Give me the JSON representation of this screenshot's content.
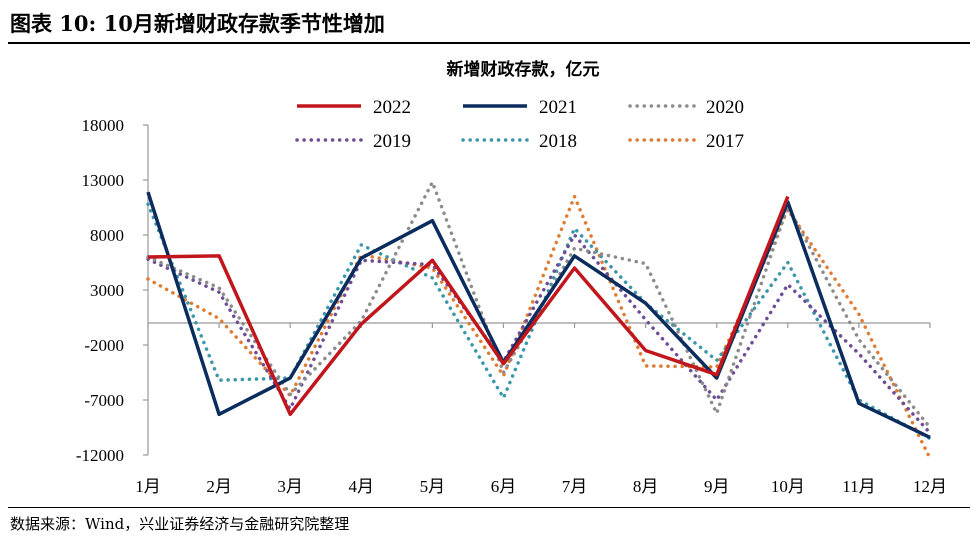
{
  "figure": {
    "title": "图表 10: 10月新增财政存款季节性增加",
    "source": "数据来源：Wind，兴业证券经济与金融研究院整理"
  },
  "chart_data": {
    "type": "line",
    "title": "新增财政存款，亿元",
    "xlabel": "",
    "ylabel": "",
    "categories": [
      "1月",
      "2月",
      "3月",
      "4月",
      "5月",
      "6月",
      "7月",
      "8月",
      "9月",
      "10月",
      "11月",
      "12月"
    ],
    "ylim": [
      -12000,
      18000
    ],
    "yticks": [
      18000,
      13000,
      8000,
      3000,
      -2000,
      -7000,
      -12000
    ],
    "ytick_labels": [
      "18000",
      "13000",
      "8000",
      "3000",
      "-2000",
      "-7000",
      "-12000"
    ],
    "grid": false,
    "legend_position": "top",
    "series": [
      {
        "name": "2022",
        "color": "#c0161c",
        "style": "solid",
        "values": [
          6000,
          6100,
          -8300,
          -100,
          5700,
          -3700,
          5000,
          -2500,
          -4700,
          11500,
          null,
          null
        ]
      },
      {
        "name": "2021",
        "color": "#0b2c5e",
        "style": "solid",
        "values": [
          11900,
          -8300,
          -5000,
          5900,
          9300,
          -3600,
          6100,
          1800,
          -5000,
          11000,
          -7300,
          -10400
        ]
      },
      {
        "name": "2020",
        "color": "#8c8c8c",
        "style": "dotted",
        "values": [
          6000,
          3200,
          -6500,
          200,
          12800,
          -4500,
          6800,
          5400,
          -8200,
          10600,
          -1500,
          -9500
        ]
      },
      {
        "name": "2019",
        "color": "#6e4d97",
        "style": "dotted",
        "values": [
          5800,
          2800,
          -7800,
          5700,
          5300,
          -3500,
          8000,
          300,
          -7000,
          3500,
          -2800,
          -10000
        ]
      },
      {
        "name": "2018",
        "color": "#3a97a9",
        "style": "dotted",
        "values": [
          10800,
          -5200,
          -5000,
          7100,
          4100,
          -6800,
          8600,
          1800,
          -3400,
          5500,
          -7000,
          -10500
        ]
      },
      {
        "name": "2017",
        "color": "#e07b33",
        "style": "dotted",
        "values": [
          4000,
          400,
          -6600,
          6200,
          5000,
          -4800,
          11500,
          -3900,
          -4000,
          10300,
          800,
          -12300
        ]
      }
    ]
  }
}
